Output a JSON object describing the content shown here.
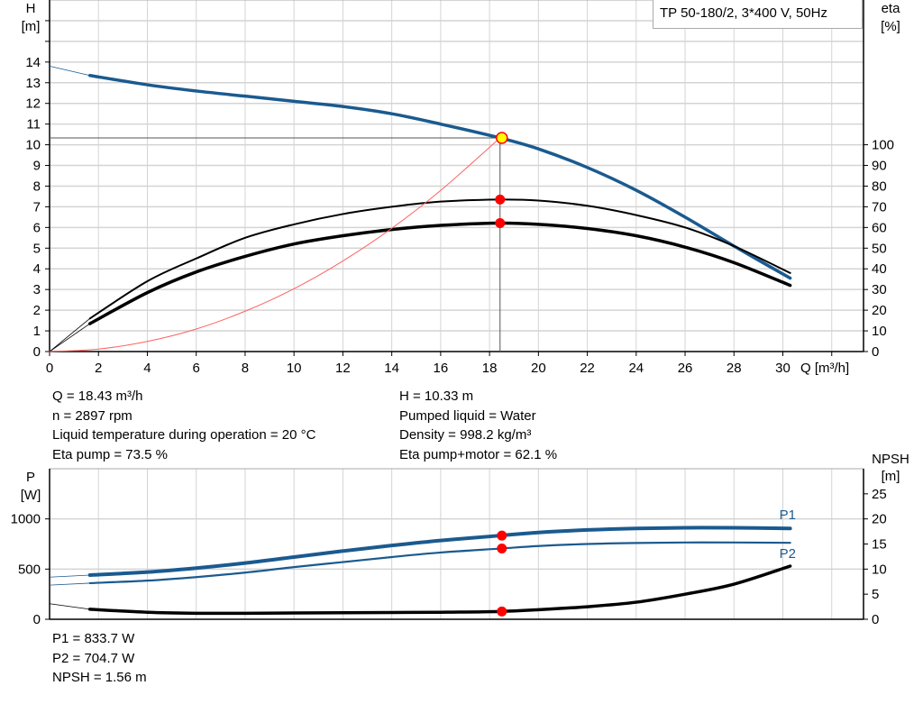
{
  "title": "TP 50-180/2, 3*400 V, 50Hz",
  "colors": {
    "head": "#1a5a8f",
    "power": "#1a5a8f",
    "efficiency": "#000000",
    "npsh": "#000000",
    "system_curve": "#ff6060",
    "grid": "#d4d4d4",
    "duty_point": "#ff0000",
    "duty_point_head": "#ffff00"
  },
  "info_top": {
    "left": [
      "Q = 18.43 m³/h",
      "n = 2897 rpm",
      "Liquid temperature during operation = 20 °C",
      "Eta pump = 73.5 %"
    ],
    "right": [
      "H = 10.33 m",
      "Pumped liquid = Water",
      "Density = 998.2 kg/m³",
      "Eta pump+motor = 62.1 %"
    ]
  },
  "info_bottom": [
    "P1 = 833.7 W",
    "P2 = 704.7 W",
    "NPSH = 1.56 m"
  ],
  "chart_data": [
    {
      "type": "line",
      "xlabel": "Q [m³/h]",
      "ylabel_left": [
        "H",
        "[m]"
      ],
      "ylabel_right": [
        "eta",
        "[%]"
      ],
      "xlim": [
        0,
        33.3
      ],
      "ylim_left": [
        0,
        17
      ],
      "ylim_right": [
        0,
        170
      ],
      "xticks": [
        0,
        2,
        4,
        6,
        8,
        10,
        12,
        14,
        16,
        18,
        20,
        22,
        24,
        26,
        28,
        30
      ],
      "yticks_left": [
        0,
        1,
        2,
        3,
        4,
        5,
        6,
        7,
        8,
        9,
        10,
        11,
        12,
        13,
        14
      ],
      "yticks_right": [
        0,
        10,
        20,
        30,
        40,
        50,
        60,
        70,
        80,
        90,
        100
      ],
      "grid": true,
      "duty_point": {
        "Q": 18.43,
        "H": 10.33,
        "eta_pump": 73.5,
        "eta_total": 62.1
      },
      "series": [
        {
          "key": "head",
          "axis": "left",
          "x": [
            1.65,
            4,
            6,
            8,
            10,
            12,
            14,
            16,
            18.43,
            20,
            22,
            24,
            26,
            28,
            30.3
          ],
          "y": [
            13.35,
            12.9,
            12.6,
            12.35,
            12.1,
            11.85,
            11.5,
            11.0,
            10.33,
            9.8,
            8.9,
            7.8,
            6.5,
            5.1,
            3.55
          ],
          "extension": {
            "x": [
              0,
              1.65
            ],
            "y": [
              13.8,
              13.35
            ]
          }
        },
        {
          "key": "eta_pump",
          "axis": "right",
          "x": [
            1.65,
            4,
            6,
            8,
            10,
            12,
            14,
            16,
            18.43,
            20,
            22,
            24,
            26,
            28,
            30.3
          ],
          "y": [
            16,
            34,
            45,
            55,
            61.5,
            66.5,
            70,
            72.5,
            73.5,
            73,
            70.5,
            66,
            60,
            51,
            38
          ],
          "extension": {
            "x": [
              0,
              1.65
            ],
            "y": [
              0,
              16
            ]
          }
        },
        {
          "key": "eta_total",
          "axis": "right",
          "x": [
            1.65,
            4,
            6,
            8,
            10,
            12,
            14,
            16,
            18.43,
            20,
            22,
            24,
            26,
            28,
            30.3
          ],
          "y": [
            13.5,
            28.5,
            38.5,
            46,
            52,
            56,
            59,
            61,
            62.1,
            61.5,
            59.5,
            56,
            50.5,
            43,
            32
          ],
          "extension": {
            "x": [
              0,
              1.65
            ],
            "y": [
              0,
              13.5
            ]
          }
        },
        {
          "key": "system_curve",
          "axis": "left",
          "x": [
            0,
            2,
            4,
            6,
            8,
            10,
            12,
            14,
            16,
            18.43
          ],
          "y": [
            0,
            0.12,
            0.49,
            1.09,
            1.95,
            3.04,
            4.38,
            5.96,
            7.79,
            10.33
          ]
        }
      ]
    },
    {
      "type": "line",
      "ylabel_left": [
        "P",
        "[W]"
      ],
      "ylabel_right": [
        "NPSH",
        "[m]"
      ],
      "xlim": [
        0,
        33.3
      ],
      "ylim_left": [
        0,
        1500
      ],
      "ylim_right": [
        0,
        30
      ],
      "yticks_left": [
        0,
        500,
        1000
      ],
      "yticks_right": [
        0,
        5,
        10,
        15,
        20,
        25
      ],
      "grid": true,
      "duty_point": {
        "Q": 18.43,
        "P1": 833.7,
        "P2": 704.7,
        "NPSH": 1.56
      },
      "series": [
        {
          "key": "P1",
          "name": "P1",
          "axis": "left",
          "x": [
            1.65,
            4,
            6,
            8,
            10,
            12,
            14,
            16,
            18.43,
            20,
            22,
            24,
            26,
            28,
            30.3
          ],
          "y": [
            440,
            470,
            510,
            560,
            620,
            680,
            735,
            785,
            833.7,
            865,
            890,
            905,
            912,
            912,
            905
          ],
          "extension": {
            "x": [
              0,
              1.65
            ],
            "y": [
              420,
              440
            ]
          }
        },
        {
          "key": "P2",
          "name": "P2",
          "axis": "left",
          "x": [
            1.65,
            4,
            6,
            8,
            10,
            12,
            14,
            16,
            18.43,
            20,
            22,
            24,
            26,
            28,
            30.3
          ],
          "y": [
            360,
            385,
            420,
            465,
            520,
            570,
            620,
            665,
            704.7,
            730,
            750,
            760,
            765,
            765,
            762
          ],
          "extension": {
            "x": [
              0,
              1.65
            ],
            "y": [
              340,
              360
            ]
          }
        },
        {
          "key": "NPSH",
          "axis": "right",
          "x": [
            1.65,
            4,
            6,
            8,
            10,
            12,
            14,
            16,
            18.43,
            20,
            22,
            24,
            26,
            28,
            30.3
          ],
          "y": [
            2.0,
            1.4,
            1.2,
            1.2,
            1.25,
            1.3,
            1.35,
            1.4,
            1.56,
            1.9,
            2.5,
            3.4,
            5.0,
            7.0,
            10.6
          ],
          "extension": {
            "x": [
              0,
              1.65
            ],
            "y": [
              3.1,
              2.0
            ]
          }
        }
      ]
    }
  ]
}
